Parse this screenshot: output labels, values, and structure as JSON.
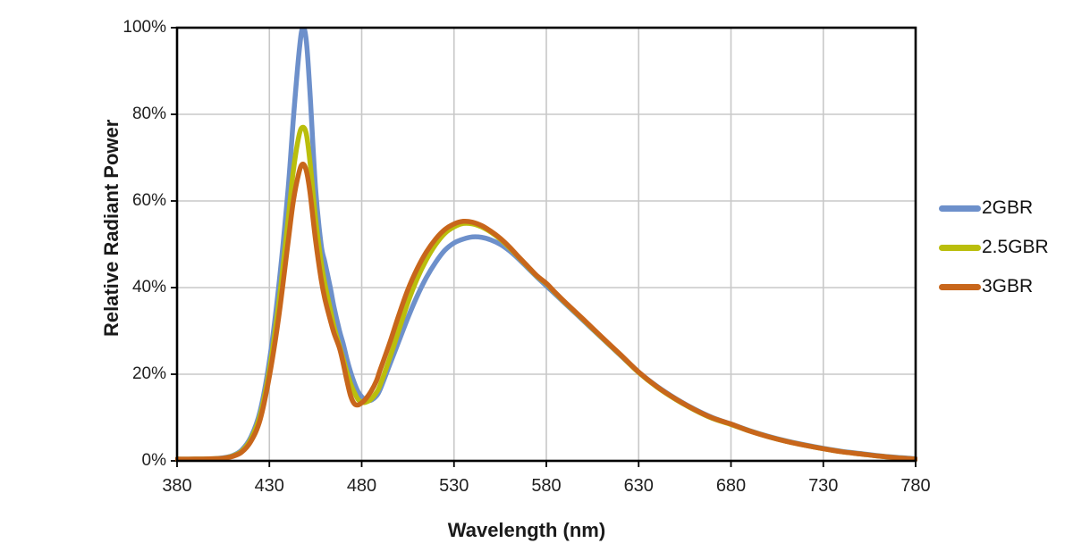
{
  "chart_data": {
    "type": "line",
    "title": "",
    "xlabel": "Wavelength (nm)",
    "ylabel": "Relative Radiant Power",
    "xlim": [
      380,
      780
    ],
    "ylim": [
      0,
      100
    ],
    "x_ticks": [
      380,
      430,
      480,
      530,
      580,
      630,
      680,
      730,
      780
    ],
    "y_ticks": [
      0,
      20,
      40,
      60,
      80,
      100
    ],
    "y_tick_suffix": "%",
    "grid": true,
    "legend_position": "right",
    "grid_color": "#c8c8c8",
    "axis_color": "#000000",
    "x": [
      380,
      390,
      400,
      405,
      410,
      415,
      420,
      425,
      430,
      435,
      440,
      443,
      446,
      448,
      450,
      452,
      455,
      458,
      460,
      463,
      465,
      468,
      470,
      472,
      474,
      476,
      478,
      480,
      482,
      485,
      488,
      490,
      495,
      500,
      505,
      510,
      515,
      520,
      525,
      530,
      535,
      540,
      545,
      550,
      555,
      560,
      565,
      570,
      575,
      580,
      585,
      590,
      600,
      610,
      620,
      630,
      640,
      650,
      660,
      670,
      680,
      690,
      700,
      710,
      720,
      730,
      740,
      750,
      760,
      770,
      780
    ],
    "series": [
      {
        "name": "2GBR",
        "color": "#6d90cb",
        "values": [
          0.4,
          0.4,
          0.5,
          0.7,
          1.2,
          2.5,
          5.5,
          11.5,
          23,
          40,
          62,
          79,
          94,
          100,
          97,
          85,
          63,
          50,
          46,
          40,
          35.5,
          30,
          27,
          23.5,
          20.5,
          18,
          16,
          14.8,
          14.1,
          14.0,
          15.0,
          16.5,
          22,
          27.5,
          33,
          38,
          42.3,
          45.8,
          48.6,
          50.3,
          51.2,
          51.7,
          51.6,
          51.0,
          50.0,
          48.5,
          46.6,
          44.5,
          42.4,
          40.4,
          38.4,
          36.4,
          32.4,
          28.4,
          24.4,
          20.5,
          17.2,
          14.4,
          12.0,
          10.0,
          8.5,
          7.0,
          5.7,
          4.6,
          3.7,
          2.9,
          2.2,
          1.7,
          1.2,
          0.8,
          0.5
        ]
      },
      {
        "name": "2.5GBR",
        "color": "#babe0c",
        "values": [
          0.4,
          0.4,
          0.5,
          0.6,
          1.1,
          2.2,
          5.0,
          10.5,
          21,
          36,
          55,
          67,
          75,
          77,
          75.5,
          69,
          56,
          46,
          41,
          35,
          31,
          26.5,
          23.5,
          20.5,
          17.8,
          15.8,
          14.2,
          13.6,
          13.5,
          14.2,
          15.8,
          17.5,
          23.5,
          30,
          36.5,
          42,
          46.4,
          49.9,
          52.5,
          54.0,
          54.8,
          54.7,
          54.0,
          52.8,
          51.2,
          49.2,
          47.0,
          44.8,
          42.6,
          40.9,
          38.7,
          36.6,
          32.6,
          28.5,
          24.5,
          20.4,
          17.0,
          14.2,
          11.8,
          9.8,
          8.4,
          6.9,
          5.6,
          4.5,
          3.6,
          2.8,
          2.1,
          1.6,
          1.1,
          0.7,
          0.4
        ]
      },
      {
        "name": "3GBR",
        "color": "#c8661b",
        "values": [
          0.4,
          0.4,
          0.5,
          0.6,
          1.0,
          2.0,
          4.5,
          9.5,
          19.5,
          33,
          50,
          60,
          66.5,
          68.5,
          67,
          62,
          51,
          42,
          37.5,
          32.5,
          29.5,
          26,
          22.5,
          18.5,
          15,
          13.2,
          12.9,
          13.4,
          14.2,
          16,
          18.5,
          21,
          27,
          33.5,
          39.5,
          44.3,
          48.2,
          51.2,
          53.4,
          54.7,
          55.3,
          55.1,
          54.3,
          53.0,
          51.4,
          49.4,
          47.1,
          44.9,
          42.7,
          41.0,
          38.8,
          36.7,
          32.7,
          28.6,
          24.6,
          20.5,
          17.1,
          14.3,
          11.9,
          9.9,
          8.5,
          6.9,
          5.6,
          4.5,
          3.6,
          2.8,
          2.1,
          1.6,
          1.1,
          0.7,
          0.4
        ]
      }
    ]
  }
}
